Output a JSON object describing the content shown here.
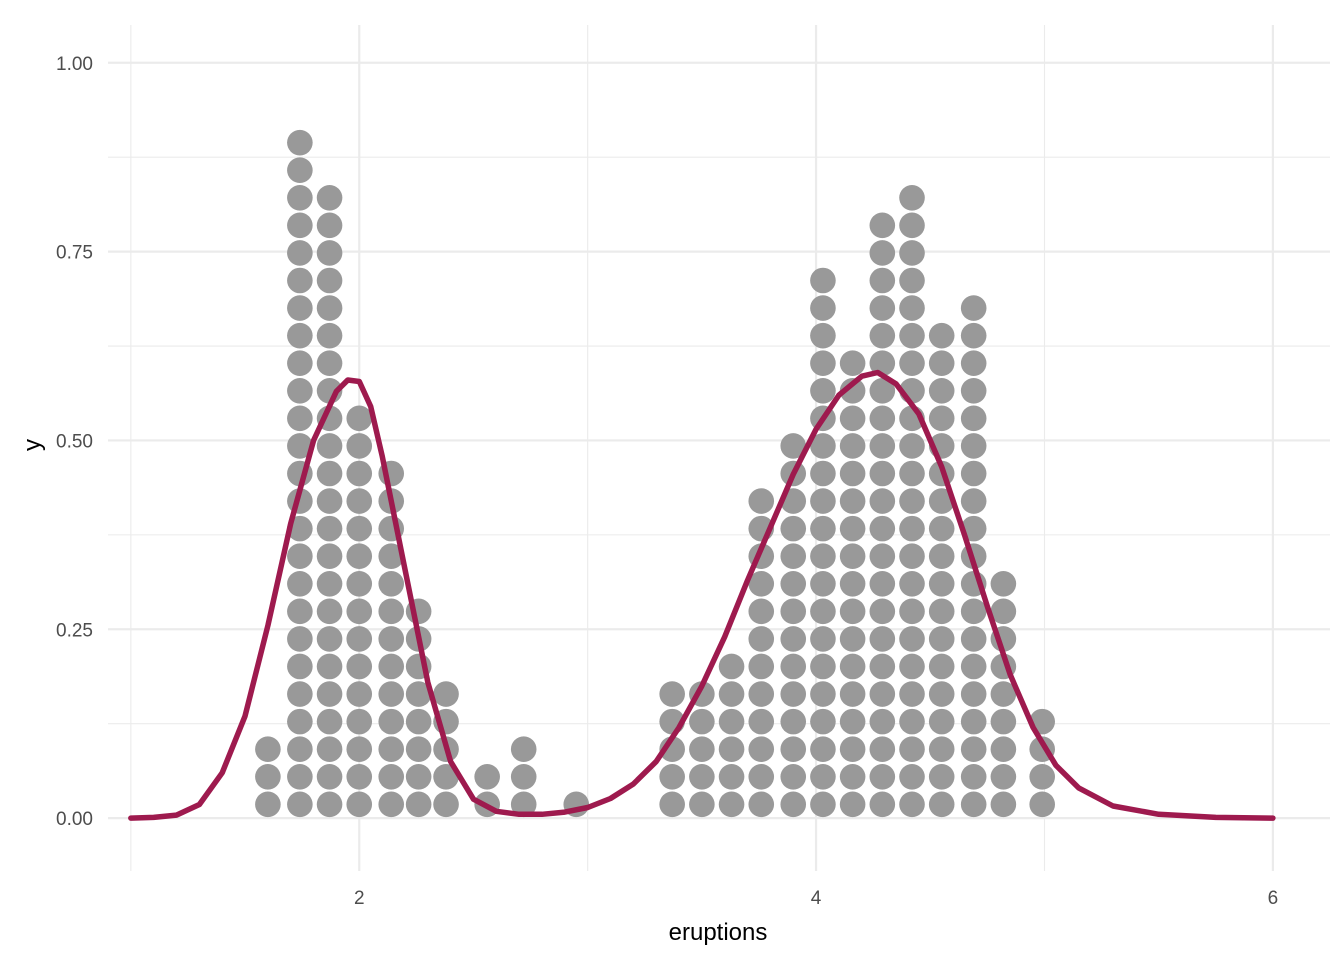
{
  "chart_data": {
    "type": "dotplot",
    "xlabel": "eruptions",
    "ylabel": "y",
    "xlim": [
      0.9,
      6.25
    ],
    "ylim": [
      -0.07,
      1.05
    ],
    "x_ticks": [
      2,
      4,
      6
    ],
    "x_tick_labels": [
      "2",
      "4",
      "6"
    ],
    "y_ticks": [
      0,
      0.25,
      0.5,
      0.75,
      1.0
    ],
    "y_tick_labels": [
      "0.00",
      "0.25",
      "0.50",
      "0.75",
      "1.00"
    ],
    "grid": true,
    "dot_color": "#999999",
    "curve_color": "#9e1a4e",
    "dot_step": 0.0365,
    "dot_stacks": [
      {
        "x": 1.6,
        "count": 3
      },
      {
        "x": 1.74,
        "count": 25
      },
      {
        "x": 1.87,
        "count": 23
      },
      {
        "x": 2.0,
        "count": 15
      },
      {
        "x": 2.14,
        "count": 13
      },
      {
        "x": 2.26,
        "count": 8
      },
      {
        "x": 2.38,
        "count": 5
      },
      {
        "x": 2.56,
        "count": 2
      },
      {
        "x": 2.72,
        "count": 3
      },
      {
        "x": 2.95,
        "count": 1
      },
      {
        "x": 3.37,
        "count": 5
      },
      {
        "x": 3.5,
        "count": 5
      },
      {
        "x": 3.63,
        "count": 6
      },
      {
        "x": 3.76,
        "count": 12
      },
      {
        "x": 3.9,
        "count": 14
      },
      {
        "x": 4.03,
        "count": 20
      },
      {
        "x": 4.16,
        "count": 17
      },
      {
        "x": 4.29,
        "count": 22
      },
      {
        "x": 4.42,
        "count": 23
      },
      {
        "x": 4.55,
        "count": 18
      },
      {
        "x": 4.69,
        "count": 19
      },
      {
        "x": 4.82,
        "count": 9
      },
      {
        "x": 4.99,
        "count": 4
      }
    ],
    "density_curve": {
      "x": [
        1.0,
        1.1,
        1.2,
        1.3,
        1.4,
        1.5,
        1.6,
        1.7,
        1.8,
        1.9,
        1.95,
        2.0,
        2.05,
        2.1,
        2.2,
        2.3,
        2.4,
        2.5,
        2.6,
        2.7,
        2.8,
        2.9,
        3.0,
        3.1,
        3.2,
        3.3,
        3.4,
        3.5,
        3.6,
        3.7,
        3.8,
        3.9,
        4.0,
        4.1,
        4.2,
        4.27,
        4.35,
        4.45,
        4.55,
        4.65,
        4.75,
        4.85,
        4.95,
        5.05,
        5.15,
        5.3,
        5.5,
        5.75,
        6.0
      ],
      "y": [
        0.0,
        0.001,
        0.004,
        0.018,
        0.06,
        0.135,
        0.255,
        0.39,
        0.5,
        0.565,
        0.58,
        0.578,
        0.545,
        0.48,
        0.33,
        0.18,
        0.075,
        0.025,
        0.009,
        0.005,
        0.005,
        0.008,
        0.014,
        0.026,
        0.045,
        0.075,
        0.12,
        0.175,
        0.24,
        0.315,
        0.385,
        0.455,
        0.515,
        0.56,
        0.585,
        0.59,
        0.575,
        0.535,
        0.465,
        0.375,
        0.28,
        0.19,
        0.12,
        0.07,
        0.04,
        0.016,
        0.005,
        0.001,
        0.0
      ]
    }
  }
}
